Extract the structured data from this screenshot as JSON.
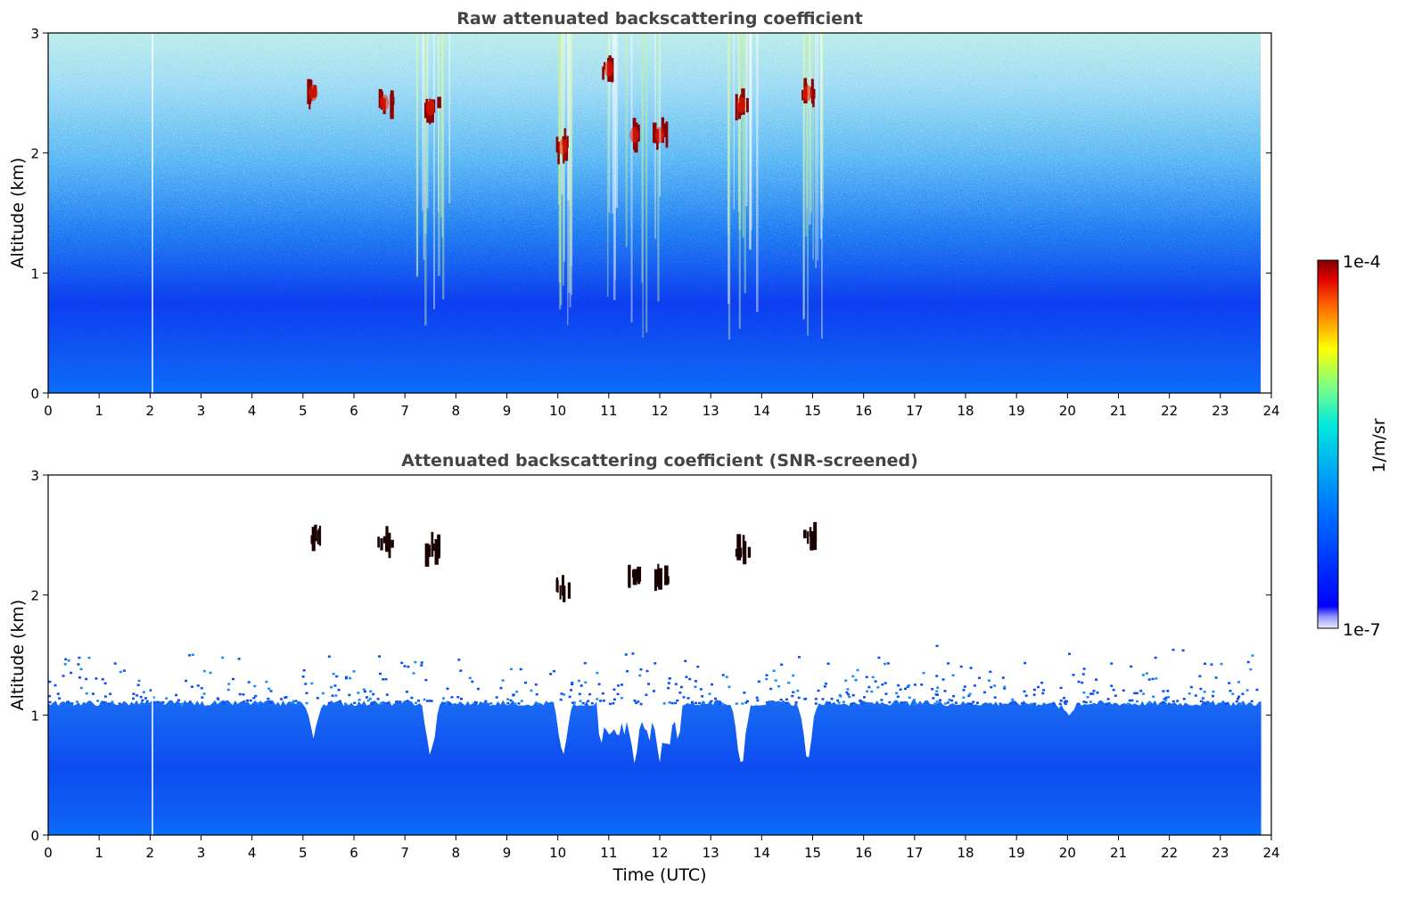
{
  "chart_data": [
    {
      "type": "heatmap",
      "title": "Raw attenuated backscattering coefficient",
      "xlabel": "",
      "ylabel": "Altitude (km)",
      "xlim": [
        0,
        24
      ],
      "ylim": [
        0,
        3
      ],
      "x_ticks": [
        "0",
        "1",
        "2",
        "3",
        "4",
        "5",
        "6",
        "7",
        "8",
        "9",
        "10",
        "11",
        "12",
        "13",
        "14",
        "15",
        "16",
        "17",
        "18",
        "19",
        "20",
        "21",
        "22",
        "23",
        "24"
      ],
      "y_ticks": [
        "0",
        "1",
        "2",
        "3"
      ],
      "data_end_time": 23.8,
      "grid": false,
      "cloud_features": [
        {
          "time": 5.2,
          "altitude": 2.5
        },
        {
          "time": 6.6,
          "altitude": 2.42
        },
        {
          "time": 7.5,
          "altitude": 2.38
        },
        {
          "time": 10.1,
          "altitude": 2.05
        },
        {
          "time": 11.0,
          "altitude": 2.7
        },
        {
          "time": 11.5,
          "altitude": 2.15
        },
        {
          "time": 12.0,
          "altitude": 2.15
        },
        {
          "time": 13.6,
          "altitude": 2.4
        },
        {
          "time": 14.9,
          "altitude": 2.5
        }
      ]
    },
    {
      "type": "heatmap",
      "title": "Attenuated backscattering coefficient (SNR-screened)",
      "xlabel": "Time (UTC)",
      "ylabel": "Altitude (km)",
      "xlim": [
        0,
        24
      ],
      "ylim": [
        0,
        3
      ],
      "x_ticks": [
        "0",
        "1",
        "2",
        "3",
        "4",
        "5",
        "6",
        "7",
        "8",
        "9",
        "10",
        "11",
        "12",
        "13",
        "14",
        "15",
        "16",
        "17",
        "18",
        "19",
        "20",
        "21",
        "22",
        "23",
        "24"
      ],
      "y_ticks": [
        "0",
        "1",
        "2",
        "3"
      ],
      "data_end_time": 23.8,
      "screened_layer_top_km": 1.1,
      "grid": false,
      "cloud_features": [
        {
          "time": 5.2,
          "altitude": 2.5
        },
        {
          "time": 6.6,
          "altitude": 2.42
        },
        {
          "time": 7.5,
          "altitude": 2.38
        },
        {
          "time": 10.1,
          "altitude": 2.05
        },
        {
          "time": 11.5,
          "altitude": 2.15
        },
        {
          "time": 12.0,
          "altitude": 2.15
        },
        {
          "time": 13.6,
          "altitude": 2.4
        },
        {
          "time": 14.9,
          "altitude": 2.5
        }
      ]
    }
  ],
  "colorbar": {
    "label": "1/m/sr",
    "max_label": "1e-4",
    "min_label": "1e-7",
    "colormap": "jet",
    "scale": "log"
  },
  "colors": {
    "background": "#ffffff",
    "title": "#444444",
    "cloud": "#8b0000"
  }
}
